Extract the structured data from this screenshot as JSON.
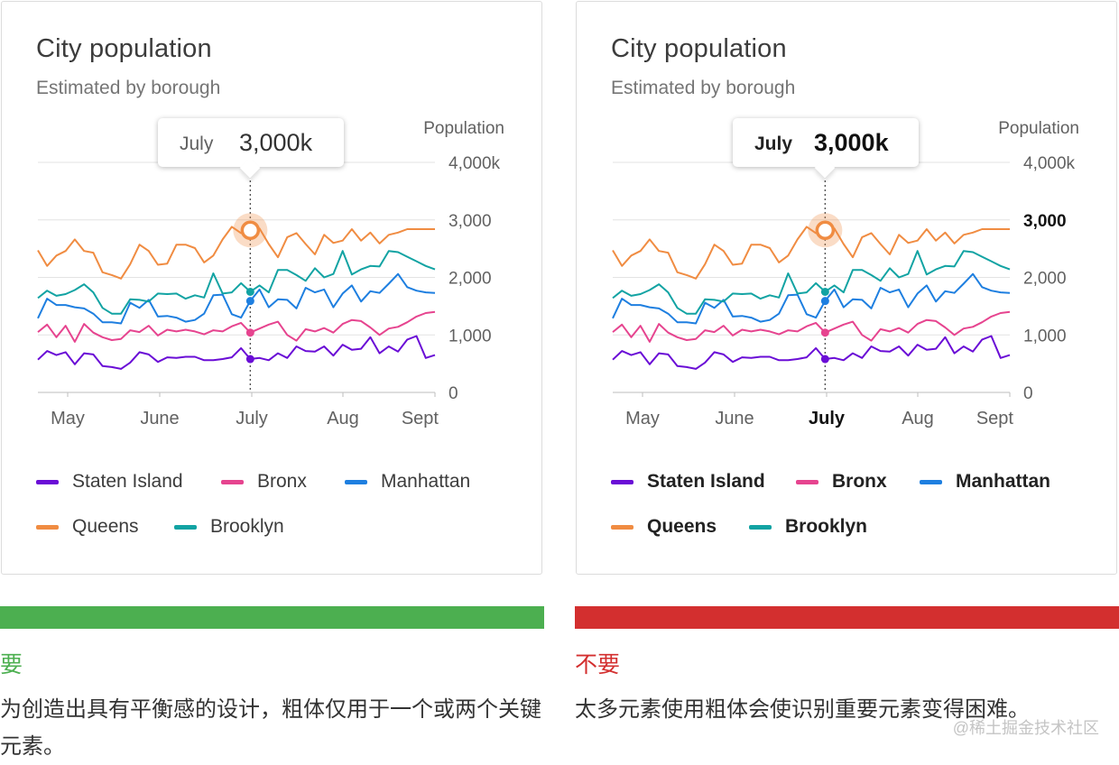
{
  "colors": {
    "good": "#4caf50",
    "bad": "#d32f2f",
    "Staten Island": "#6a0dd6",
    "Bronx": "#e6448f",
    "Manhattan": "#1e7fe0",
    "Queens": "#f08c42",
    "Brooklyn": "#12a3a3"
  },
  "chart_data": [
    {
      "type": "line",
      "variant": "good",
      "title": "City population",
      "subtitle": "Estimated by borough",
      "ylabel": "Population",
      "ylim": [
        0,
        4000
      ],
      "yticks": [
        "0",
        "1,000",
        "2,000",
        "3,000",
        "4,000k"
      ],
      "xticks": [
        "May",
        "June",
        "July",
        "Aug",
        "Sept"
      ],
      "emphasis_y": -1,
      "emphasis_x": -1,
      "tooltip": {
        "month": "July",
        "value": "3,000k",
        "index": 23
      },
      "legend": [
        "Staten Island",
        "Bronx",
        "Manhattan",
        "Queens",
        "Brooklyn"
      ],
      "series": [
        {
          "name": "Staten Island",
          "values": [
            570,
            720,
            650,
            700,
            490,
            680,
            660,
            460,
            440,
            410,
            520,
            700,
            660,
            530,
            610,
            600,
            620,
            620,
            560,
            560,
            580,
            610,
            770,
            580,
            600,
            560,
            680,
            600,
            800,
            720,
            710,
            800,
            640,
            830,
            740,
            760,
            960,
            680,
            800,
            710,
            920,
            980,
            600,
            650
          ]
        },
        {
          "name": "Bronx",
          "values": [
            1050,
            1180,
            960,
            1160,
            880,
            1190,
            1040,
            960,
            910,
            930,
            1080,
            1050,
            1160,
            990,
            1090,
            1060,
            1090,
            1060,
            1010,
            1080,
            1060,
            1150,
            1210,
            1040,
            1110,
            1180,
            1230,
            1000,
            900,
            1100,
            1060,
            1120,
            1040,
            1190,
            1260,
            1240,
            1130,
            1000,
            1110,
            1140,
            1220,
            1320,
            1380,
            1400
          ]
        },
        {
          "name": "Manhattan",
          "values": [
            1290,
            1630,
            1520,
            1520,
            1480,
            1460,
            1370,
            1220,
            1220,
            1200,
            1560,
            1470,
            1610,
            1320,
            1330,
            1300,
            1230,
            1260,
            1370,
            1690,
            1700,
            1360,
            1300,
            1590,
            1790,
            1480,
            1620,
            1610,
            1460,
            1820,
            1740,
            1790,
            1480,
            1720,
            1860,
            1580,
            1760,
            1730,
            1890,
            2060,
            1830,
            1770,
            1740,
            1730
          ]
        },
        {
          "name": "Queens",
          "values": [
            2470,
            2200,
            2380,
            2460,
            2660,
            2460,
            2430,
            2090,
            2040,
            1980,
            2230,
            2570,
            2460,
            2220,
            2240,
            2570,
            2570,
            2510,
            2260,
            2380,
            2660,
            2880,
            2770,
            2820,
            2850,
            2580,
            2350,
            2700,
            2770,
            2580,
            2400,
            2740,
            2600,
            2640,
            2840,
            2640,
            2780,
            2590,
            2740,
            2780,
            2840,
            2840,
            2840,
            2840
          ]
        },
        {
          "name": "Brooklyn",
          "values": [
            1640,
            1770,
            1680,
            1710,
            1780,
            1880,
            1740,
            1470,
            1370,
            1370,
            1620,
            1610,
            1580,
            1720,
            1710,
            1720,
            1630,
            1690,
            1650,
            2070,
            1720,
            1740,
            1900,
            1750,
            1860,
            1740,
            2130,
            2130,
            2040,
            1940,
            2160,
            2000,
            2060,
            2460,
            2050,
            2140,
            2200,
            2190,
            2460,
            2440,
            2360,
            2280,
            2200,
            2140
          ]
        }
      ],
      "text_label": "要",
      "caption": "为创造出具有平衡感的设计，粗体仅用于一个或两个关键元素。"
    },
    {
      "type": "line",
      "variant": "bad",
      "title": "City population",
      "subtitle": "Estimated by borough",
      "ylabel": "Population",
      "ylim": [
        0,
        4000
      ],
      "yticks": [
        "0",
        "1,000",
        "2,000",
        "3,000",
        "4,000k"
      ],
      "xticks": [
        "May",
        "June",
        "July",
        "Aug",
        "Sept"
      ],
      "emphasis_y": 3,
      "emphasis_x": 2,
      "tooltip": {
        "month": "July",
        "value": "3,000k",
        "index": 23
      },
      "legend": [
        "Staten Island",
        "Bronx",
        "Manhattan",
        "Queens",
        "Brooklyn"
      ],
      "series": [
        {
          "name": "Staten Island",
          "values": [
            570,
            720,
            650,
            700,
            490,
            680,
            660,
            460,
            440,
            410,
            520,
            700,
            660,
            530,
            610,
            600,
            620,
            620,
            560,
            560,
            580,
            610,
            770,
            580,
            600,
            560,
            680,
            600,
            800,
            720,
            710,
            800,
            640,
            830,
            740,
            760,
            960,
            680,
            800,
            710,
            920,
            980,
            600,
            650
          ]
        },
        {
          "name": "Bronx",
          "values": [
            1050,
            1180,
            960,
            1160,
            880,
            1190,
            1040,
            960,
            910,
            930,
            1080,
            1050,
            1160,
            990,
            1090,
            1060,
            1090,
            1060,
            1010,
            1080,
            1060,
            1150,
            1210,
            1040,
            1110,
            1180,
            1230,
            1000,
            900,
            1100,
            1060,
            1120,
            1040,
            1190,
            1260,
            1240,
            1130,
            1000,
            1110,
            1140,
            1220,
            1320,
            1380,
            1400
          ]
        },
        {
          "name": "Manhattan",
          "values": [
            1290,
            1630,
            1520,
            1520,
            1480,
            1460,
            1370,
            1220,
            1220,
            1200,
            1560,
            1470,
            1610,
            1320,
            1330,
            1300,
            1230,
            1260,
            1370,
            1690,
            1700,
            1360,
            1300,
            1590,
            1790,
            1480,
            1620,
            1610,
            1460,
            1820,
            1740,
            1790,
            1480,
            1720,
            1860,
            1580,
            1760,
            1730,
            1890,
            2060,
            1830,
            1770,
            1740,
            1730
          ]
        },
        {
          "name": "Queens",
          "values": [
            2470,
            2200,
            2380,
            2460,
            2660,
            2460,
            2430,
            2090,
            2040,
            1980,
            2230,
            2570,
            2460,
            2220,
            2240,
            2570,
            2570,
            2510,
            2260,
            2380,
            2660,
            2880,
            2770,
            2820,
            2850,
            2580,
            2350,
            2700,
            2770,
            2580,
            2400,
            2740,
            2600,
            2640,
            2840,
            2640,
            2780,
            2590,
            2740,
            2780,
            2840,
            2840,
            2840,
            2840
          ]
        },
        {
          "name": "Brooklyn",
          "values": [
            1640,
            1770,
            1680,
            1710,
            1780,
            1880,
            1740,
            1470,
            1370,
            1370,
            1620,
            1610,
            1580,
            1720,
            1710,
            1720,
            1630,
            1690,
            1650,
            2070,
            1720,
            1740,
            1900,
            1750,
            1860,
            1740,
            2130,
            2130,
            2040,
            1940,
            2160,
            2000,
            2060,
            2460,
            2050,
            2140,
            2200,
            2190,
            2460,
            2440,
            2360,
            2280,
            2200,
            2140
          ]
        }
      ],
      "text_label": "不要",
      "caption": "太多元素使用粗体会使识别重要元素变得困难。"
    }
  ],
  "watermark": "@稀土掘金技术社区"
}
